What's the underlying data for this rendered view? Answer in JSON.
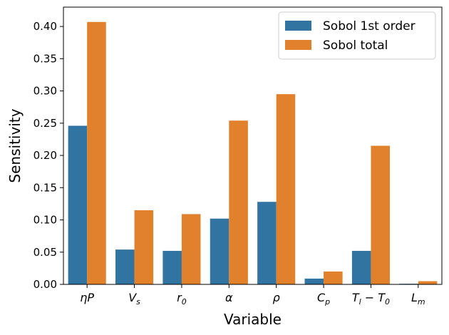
{
  "chart_data": {
    "type": "bar",
    "xlabel": "Variable",
    "ylabel": "Sensitivity",
    "ylim": [
      0,
      0.43
    ],
    "yticks": [
      "0.00",
      "0.05",
      "0.10",
      "0.15",
      "0.20",
      "0.25",
      "0.30",
      "0.35",
      "0.40"
    ],
    "categories": [
      {
        "base": "ηP",
        "sub": ""
      },
      {
        "base": "V",
        "sub": "s"
      },
      {
        "base": "r",
        "sub": "0"
      },
      {
        "base": "α",
        "sub": ""
      },
      {
        "base": "ρ",
        "sub": ""
      },
      {
        "base": "C",
        "sub": "p"
      },
      {
        "base": "T",
        "sub": "l",
        "tail": " − T",
        "sub2": "0"
      },
      {
        "base": "L",
        "sub": "m"
      }
    ],
    "series": [
      {
        "name": "Sobol 1st order",
        "color": "#3274a1",
        "values": [
          0.246,
          0.054,
          0.052,
          0.102,
          0.128,
          0.009,
          0.052,
          0.001
        ]
      },
      {
        "name": "Sobol total",
        "color": "#e1812c",
        "values": [
          0.407,
          0.115,
          0.109,
          0.254,
          0.295,
          0.02,
          0.215,
          0.005
        ]
      }
    ],
    "legend_position": "top-right",
    "grid": false
  }
}
